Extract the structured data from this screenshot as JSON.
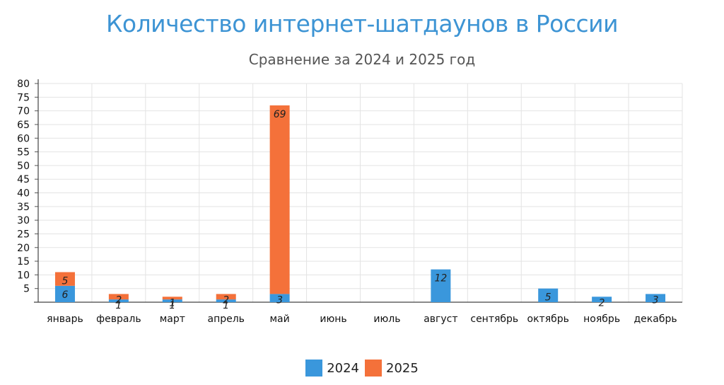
{
  "chart_data": {
    "type": "bar",
    "stacked": true,
    "title": "Количество интернет-шатдаунов в России",
    "subtitle": "Сравнение за 2024 и 2025 год",
    "categories": [
      "январь",
      "февраль",
      "март",
      "апрель",
      "май",
      "июнь",
      "июль",
      "август",
      "сентябрь",
      "октябрь",
      "ноябрь",
      "декабрь"
    ],
    "series": [
      {
        "name": "2024",
        "color": "#3a97dc",
        "values": [
          6,
          1,
          1,
          1,
          3,
          0,
          0,
          12,
          0,
          5,
          2,
          3
        ]
      },
      {
        "name": "2025",
        "color": "#f4713a",
        "values": [
          5,
          2,
          1,
          2,
          69,
          0,
          0,
          0,
          0,
          0,
          0,
          0
        ]
      }
    ],
    "ylim": [
      0,
      80
    ],
    "yticks": [
      5,
      10,
      15,
      20,
      25,
      30,
      35,
      40,
      45,
      50,
      55,
      60,
      65,
      70,
      75,
      80
    ],
    "grid": true,
    "legend_position": "bottom-center"
  }
}
